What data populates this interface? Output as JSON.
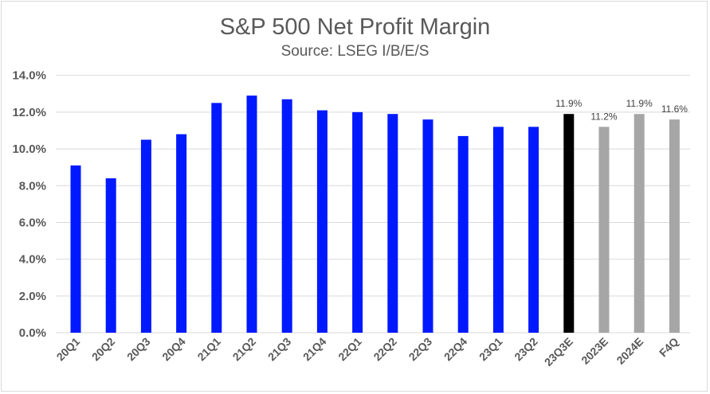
{
  "chart_data": {
    "type": "bar",
    "title": "S&P 500 Net Profit Margin",
    "subtitle": "Source: LSEG I/B/E/S",
    "categories": [
      "20Q1",
      "20Q2",
      "20Q3",
      "20Q4",
      "21Q1",
      "21Q2",
      "21Q3",
      "21Q4",
      "22Q1",
      "22Q2",
      "22Q3",
      "22Q4",
      "23Q1",
      "23Q2",
      "23Q3E",
      "2023E",
      "2024E",
      "F4Q"
    ],
    "values": [
      9.1,
      8.4,
      10.5,
      10.8,
      12.5,
      12.9,
      12.7,
      12.1,
      12.0,
      11.9,
      11.6,
      10.7,
      11.2,
      11.2,
      11.9,
      11.2,
      11.9,
      11.6
    ],
    "bar_colors": [
      "#0019ff",
      "#0019ff",
      "#0019ff",
      "#0019ff",
      "#0019ff",
      "#0019ff",
      "#0019ff",
      "#0019ff",
      "#0019ff",
      "#0019ff",
      "#0019ff",
      "#0019ff",
      "#0019ff",
      "#0019ff",
      "#000000",
      "#a6a6a6",
      "#a6a6a6",
      "#a6a6a6"
    ],
    "data_labels": {
      "14": "11.9%",
      "15": "11.2%",
      "16": "11.9%",
      "17": "11.6%"
    },
    "ylim": [
      0,
      14
    ],
    "yticks": [
      "0.0%",
      "2.0%",
      "4.0%",
      "6.0%",
      "8.0%",
      "10.0%",
      "12.0%",
      "14.0%"
    ],
    "grid": true,
    "xlabel": "",
    "ylabel": ""
  }
}
